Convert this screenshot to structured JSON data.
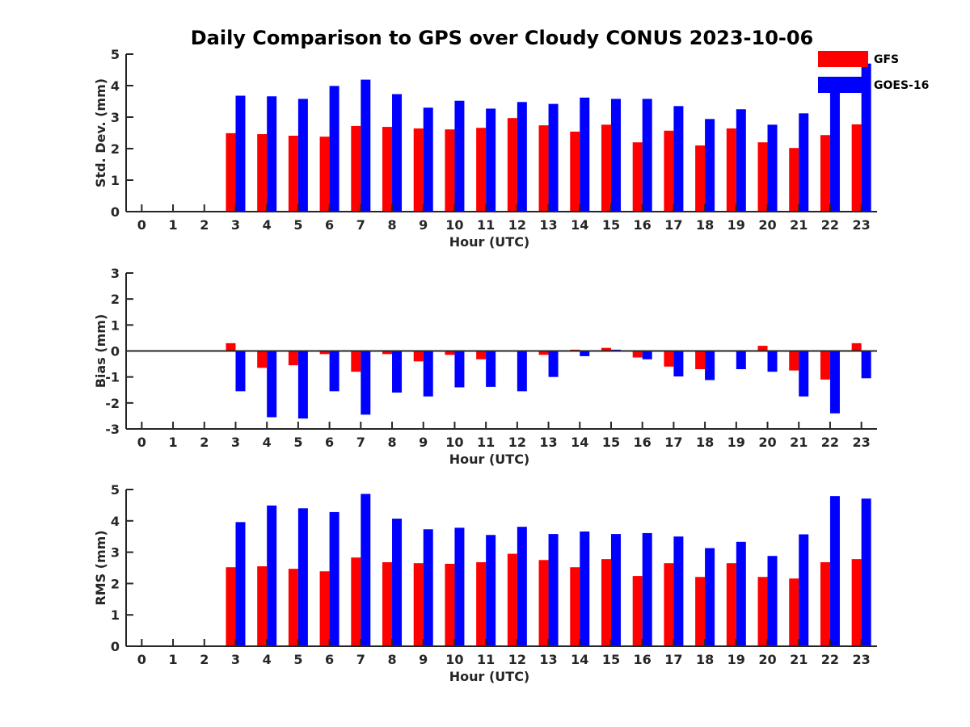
{
  "chart_data": {
    "title": "Daily Comparison to GPS over Cloudy CONUS 2023-10-06",
    "type": "bar",
    "legend": {
      "placement": "top-right",
      "entries": [
        {
          "name": "GFS",
          "color": "#ff0000"
        },
        {
          "name": "GOES-16",
          "color": "#0000ff"
        }
      ]
    },
    "panels": [
      {
        "ylabel": "Std. Dev. (mm)",
        "xlabel": "Hour (UTC)",
        "ylim": [
          0,
          5
        ],
        "yticks": [
          "0",
          "1",
          "2",
          "3",
          "4",
          "5"
        ],
        "x": [
          "0",
          "1",
          "2",
          "3",
          "4",
          "5",
          "6",
          "7",
          "8",
          "9",
          "10",
          "11",
          "12",
          "13",
          "14",
          "15",
          "16",
          "17",
          "18",
          "19",
          "20",
          "21",
          "22",
          "23"
        ],
        "series": [
          {
            "name": "GFS",
            "color": "#ff0000",
            "values": [
              null,
              null,
              null,
              2.49,
              2.46,
              2.41,
              2.38,
              2.72,
              2.69,
              2.64,
              2.61,
              2.66,
              2.97,
              2.74,
              2.54,
              2.76,
              2.2,
              2.57,
              2.1,
              2.64,
              2.2,
              2.02,
              2.43,
              2.77
            ]
          },
          {
            "name": "GOES-16",
            "color": "#0000ff",
            "values": [
              null,
              null,
              null,
              3.68,
              3.66,
              3.58,
              3.99,
              4.19,
              3.73,
              3.3,
              3.52,
              3.27,
              3.48,
              3.42,
              3.62,
              3.58,
              3.58,
              3.35,
              2.94,
              3.25,
              2.76,
              3.12,
              4.12,
              4.7
            ]
          }
        ]
      },
      {
        "ylabel": "Bias (mm)",
        "xlabel": "Hour (UTC)",
        "ylim": [
          -3,
          3
        ],
        "yticks": [
          "-3",
          "-2",
          "-1",
          "0",
          "1",
          "2",
          "3"
        ],
        "x": [
          "0",
          "1",
          "2",
          "3",
          "4",
          "5",
          "6",
          "7",
          "8",
          "9",
          "10",
          "11",
          "12",
          "13",
          "14",
          "15",
          "16",
          "17",
          "18",
          "19",
          "20",
          "21",
          "22",
          "23"
        ],
        "series": [
          {
            "name": "GFS",
            "color": "#ff0000",
            "values": [
              null,
              null,
              null,
              0.3,
              -0.65,
              -0.55,
              -0.12,
              -0.8,
              -0.12,
              -0.4,
              -0.15,
              -0.32,
              -0.02,
              -0.15,
              0.05,
              0.12,
              -0.25,
              -0.6,
              -0.7,
              -0.02,
              0.2,
              -0.75,
              -1.1,
              0.3
            ]
          },
          {
            "name": "GOES-16",
            "color": "#0000ff",
            "values": [
              null,
              null,
              null,
              -1.55,
              -2.55,
              -2.6,
              -1.55,
              -2.45,
              -1.6,
              -1.75,
              -1.4,
              -1.38,
              -1.55,
              -1.0,
              -0.2,
              0.05,
              -0.32,
              -0.98,
              -1.12,
              -0.7,
              -0.8,
              -1.75,
              -2.4,
              -1.05
            ]
          }
        ]
      },
      {
        "ylabel": "RMS (mm)",
        "xlabel": "Hour (UTC)",
        "ylim": [
          0,
          5
        ],
        "yticks": [
          "0",
          "1",
          "2",
          "3",
          "4",
          "5"
        ],
        "x": [
          "0",
          "1",
          "2",
          "3",
          "4",
          "5",
          "6",
          "7",
          "8",
          "9",
          "10",
          "11",
          "12",
          "13",
          "14",
          "15",
          "16",
          "17",
          "18",
          "19",
          "20",
          "21",
          "22",
          "23"
        ],
        "series": [
          {
            "name": "GFS",
            "color": "#ff0000",
            "values": [
              null,
              null,
              null,
              2.52,
              2.55,
              2.47,
              2.39,
              2.83,
              2.68,
              2.65,
              2.63,
              2.68,
              2.95,
              2.75,
              2.52,
              2.78,
              2.24,
              2.65,
              2.21,
              2.65,
              2.21,
              2.16,
              2.68,
              2.78
            ]
          },
          {
            "name": "GOES-16",
            "color": "#0000ff",
            "values": [
              null,
              null,
              null,
              3.96,
              4.49,
              4.4,
              4.28,
              4.86,
              4.07,
              3.73,
              3.78,
              3.55,
              3.81,
              3.58,
              3.66,
              3.58,
              3.61,
              3.5,
              3.13,
              3.33,
              2.88,
              3.57,
              4.79,
              4.71
            ]
          }
        ]
      }
    ]
  }
}
